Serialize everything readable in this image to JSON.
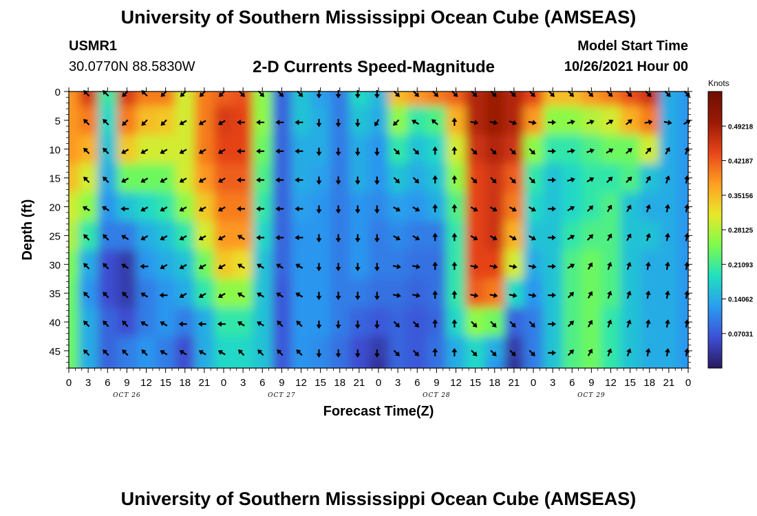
{
  "header": {
    "title": "University of Southern Mississippi Ocean Cube (AMSEAS)",
    "station_id": "USMR1",
    "coordinates": "30.0770N  88.5830W",
    "plot_title": "2-D Currents Speed-Magnitude",
    "model_start_label": "Model Start Time",
    "model_start_value": "10/26/2021 Hour 00"
  },
  "footer": {
    "title": "University of Southern Mississippi Ocean Cube (AMSEAS)"
  },
  "colors": {
    "colormap": [
      "#2a1a5e",
      "#3d4fd6",
      "#2a9cf0",
      "#20e0c0",
      "#7cfc4c",
      "#e8e82a",
      "#ff9f22",
      "#e8451a",
      "#9a1a06",
      "#6e0f04"
    ],
    "arrow": "#000000"
  },
  "chart_data": {
    "type": "heatmap",
    "title": "2-D Currents Speed-Magnitude",
    "xlabel": "Forecast Time(Z)",
    "ylabel": "Depth (ft)",
    "x_ticks": [
      "0",
      "3",
      "6",
      "9",
      "12",
      "15",
      "18",
      "21",
      "0",
      "3",
      "6",
      "9",
      "12",
      "15",
      "18",
      "21",
      "0",
      "3",
      "6",
      "9",
      "12",
      "15",
      "18",
      "21",
      "0",
      "3",
      "6",
      "9",
      "12",
      "15",
      "18",
      "21",
      "0"
    ],
    "day_labels": [
      "OCT 26",
      "OCT 27",
      "OCT 28",
      "OCT 29"
    ],
    "xlim_hours": [
      0,
      96
    ],
    "y_ticks": [
      0,
      5,
      10,
      15,
      20,
      25,
      30,
      35,
      40,
      45
    ],
    "ylim_ft": [
      0,
      48
    ],
    "colorbar": {
      "unit": "Knots",
      "min": 0,
      "max": 0.5625,
      "tick_labels": [
        "0.49218",
        "0.42187",
        "0.35156",
        "0.28125",
        "0.21093",
        "0.14062",
        "0.07031"
      ],
      "tick_values": [
        0.49218,
        0.42187,
        0.35156,
        0.28125,
        0.21093,
        0.14062,
        0.07031
      ]
    },
    "speed_knots": {
      "hours": [
        0,
        3,
        6,
        9,
        12,
        15,
        18,
        21,
        24,
        27,
        30,
        33,
        36,
        39,
        42,
        45,
        48,
        51,
        54,
        57,
        60,
        63,
        66,
        69,
        72,
        75,
        78,
        81,
        84,
        87,
        90,
        93,
        96
      ],
      "depths_ft": [
        0,
        5,
        10,
        15,
        20,
        25,
        30,
        35,
        40,
        45,
        48
      ],
      "values": [
        [
          0.38,
          0.45,
          0.2,
          0.45,
          0.4,
          0.4,
          0.3,
          0.4,
          0.42,
          0.43,
          0.26,
          0.08,
          0.16,
          0.13,
          0.1,
          0.18,
          0.15,
          0.35,
          0.38,
          0.4,
          0.42,
          0.48,
          0.5,
          0.48,
          0.44,
          0.35,
          0.35,
          0.38,
          0.4,
          0.43,
          0.46,
          0.14,
          0.12
        ],
        [
          0.38,
          0.4,
          0.18,
          0.4,
          0.35,
          0.34,
          0.3,
          0.4,
          0.45,
          0.44,
          0.26,
          0.08,
          0.16,
          0.14,
          0.1,
          0.16,
          0.14,
          0.26,
          0.2,
          0.22,
          0.36,
          0.48,
          0.5,
          0.48,
          0.38,
          0.26,
          0.26,
          0.28,
          0.3,
          0.36,
          0.4,
          0.14,
          0.12
        ],
        [
          0.38,
          0.36,
          0.16,
          0.34,
          0.3,
          0.3,
          0.3,
          0.4,
          0.44,
          0.44,
          0.24,
          0.08,
          0.14,
          0.14,
          0.1,
          0.14,
          0.12,
          0.2,
          0.16,
          0.18,
          0.3,
          0.46,
          0.48,
          0.46,
          0.26,
          0.2,
          0.2,
          0.22,
          0.24,
          0.24,
          0.3,
          0.14,
          0.12
        ],
        [
          0.35,
          0.3,
          0.14,
          0.24,
          0.24,
          0.24,
          0.3,
          0.38,
          0.42,
          0.42,
          0.22,
          0.08,
          0.14,
          0.13,
          0.1,
          0.14,
          0.12,
          0.16,
          0.14,
          0.16,
          0.26,
          0.44,
          0.46,
          0.42,
          0.2,
          0.16,
          0.18,
          0.2,
          0.2,
          0.22,
          0.16,
          0.14,
          0.12
        ],
        [
          0.3,
          0.26,
          0.12,
          0.16,
          0.18,
          0.2,
          0.26,
          0.34,
          0.4,
          0.4,
          0.2,
          0.08,
          0.13,
          0.12,
          0.1,
          0.12,
          0.11,
          0.13,
          0.12,
          0.14,
          0.22,
          0.44,
          0.46,
          0.4,
          0.18,
          0.16,
          0.18,
          0.2,
          0.22,
          0.16,
          0.14,
          0.14,
          0.12
        ],
        [
          0.28,
          0.2,
          0.1,
          0.1,
          0.14,
          0.16,
          0.2,
          0.3,
          0.38,
          0.38,
          0.18,
          0.08,
          0.12,
          0.12,
          0.1,
          0.12,
          0.1,
          0.11,
          0.1,
          0.1,
          0.2,
          0.44,
          0.46,
          0.36,
          0.16,
          0.16,
          0.2,
          0.22,
          0.22,
          0.16,
          0.16,
          0.14,
          0.12
        ],
        [
          0.25,
          0.14,
          0.06,
          0.04,
          0.12,
          0.14,
          0.16,
          0.24,
          0.34,
          0.32,
          0.16,
          0.08,
          0.12,
          0.12,
          0.1,
          0.12,
          0.1,
          0.1,
          0.09,
          0.09,
          0.2,
          0.44,
          0.44,
          0.3,
          0.14,
          0.16,
          0.22,
          0.24,
          0.22,
          0.16,
          0.14,
          0.14,
          0.12
        ],
        [
          0.24,
          0.12,
          0.06,
          0.04,
          0.1,
          0.12,
          0.14,
          0.2,
          0.26,
          0.26,
          0.16,
          0.07,
          0.12,
          0.12,
          0.1,
          0.1,
          0.09,
          0.09,
          0.08,
          0.09,
          0.2,
          0.42,
          0.4,
          0.18,
          0.12,
          0.16,
          0.22,
          0.24,
          0.22,
          0.16,
          0.14,
          0.14,
          0.12
        ],
        [
          0.24,
          0.14,
          0.08,
          0.06,
          0.1,
          0.12,
          0.1,
          0.14,
          0.2,
          0.2,
          0.16,
          0.07,
          0.12,
          0.12,
          0.1,
          0.08,
          0.07,
          0.08,
          0.07,
          0.08,
          0.18,
          0.26,
          0.24,
          0.08,
          0.1,
          0.16,
          0.22,
          0.24,
          0.2,
          0.16,
          0.14,
          0.14,
          0.12
        ],
        [
          0.24,
          0.14,
          0.08,
          0.1,
          0.12,
          0.1,
          0.06,
          0.14,
          0.18,
          0.18,
          0.16,
          0.07,
          0.12,
          0.11,
          0.09,
          0.06,
          0.04,
          0.08,
          0.07,
          0.09,
          0.14,
          0.18,
          0.14,
          0.04,
          0.1,
          0.16,
          0.22,
          0.24,
          0.2,
          0.16,
          0.14,
          0.14,
          0.12
        ],
        [
          0.24,
          0.14,
          0.08,
          0.1,
          0.12,
          0.1,
          0.06,
          0.14,
          0.18,
          0.18,
          0.16,
          0.07,
          0.12,
          0.11,
          0.09,
          0.06,
          0.03,
          0.08,
          0.07,
          0.09,
          0.14,
          0.18,
          0.12,
          0.03,
          0.1,
          0.16,
          0.22,
          0.24,
          0.2,
          0.16,
          0.14,
          0.14,
          0.12
        ]
      ]
    },
    "vector_directions_deg": {
      "note": "direction the current flows toward, degrees clockwise from north (up); arrow rows at depths 0,5,...,45 ft, columns every 3 h",
      "depths_ft": [
        0,
        5,
        10,
        15,
        20,
        25,
        30,
        35,
        40,
        45
      ],
      "rows": [
        [
          315,
          315,
          225,
          315,
          225,
          225,
          225,
          225,
          135,
          135,
          135,
          135,
          180,
          180,
          180,
          180,
          135,
          135,
          135,
          135,
          135,
          135,
          135,
          135,
          135,
          135,
          135,
          135,
          135,
          135,
          135,
          135,
          135
        ],
        [
          315,
          315,
          225,
          225,
          225,
          240,
          240,
          240,
          270,
          270,
          270,
          270,
          180,
          180,
          180,
          210,
          225,
          300,
          310,
          0,
          100,
          100,
          110,
          100,
          90,
          75,
          70,
          60,
          50,
          80,
          100,
          60,
          30
        ],
        [
          315,
          315,
          240,
          240,
          240,
          240,
          240,
          240,
          270,
          270,
          270,
          270,
          180,
          180,
          180,
          180,
          135,
          135,
          0,
          0,
          135,
          135,
          135,
          135,
          90,
          80,
          70,
          60,
          50,
          40,
          30,
          20,
          20
        ],
        [
          315,
          315,
          240,
          240,
          240,
          240,
          240,
          240,
          270,
          270,
          270,
          270,
          180,
          180,
          180,
          180,
          135,
          135,
          0,
          0,
          135,
          135,
          135,
          135,
          90,
          75,
          60,
          45,
          45,
          30,
          20,
          10,
          10
        ],
        [
          300,
          300,
          270,
          240,
          240,
          240,
          240,
          240,
          270,
          270,
          270,
          270,
          180,
          180,
          180,
          180,
          120,
          120,
          0,
          0,
          120,
          120,
          120,
          120,
          90,
          60,
          45,
          30,
          30,
          20,
          10,
          10,
          10
        ],
        [
          315,
          315,
          300,
          240,
          240,
          240,
          240,
          240,
          300,
          270,
          270,
          270,
          180,
          180,
          180,
          180,
          120,
          120,
          0,
          0,
          120,
          120,
          120,
          120,
          90,
          60,
          45,
          30,
          30,
          20,
          10,
          10,
          10
        ],
        [
          315,
          315,
          300,
          270,
          240,
          240,
          240,
          240,
          300,
          300,
          300,
          300,
          180,
          180,
          180,
          180,
          100,
          100,
          0,
          0,
          100,
          100,
          100,
          100,
          90,
          60,
          30,
          20,
          20,
          10,
          10,
          10,
          10
        ],
        [
          315,
          315,
          315,
          300,
          270,
          240,
          240,
          240,
          300,
          300,
          300,
          300,
          180,
          180,
          180,
          180,
          100,
          100,
          0,
          0,
          100,
          100,
          100,
          100,
          90,
          45,
          30,
          20,
          20,
          10,
          10,
          10,
          10
        ],
        [
          315,
          315,
          315,
          300,
          300,
          270,
          270,
          270,
          300,
          300,
          315,
          315,
          180,
          180,
          180,
          180,
          135,
          135,
          0,
          0,
          135,
          135,
          135,
          135,
          90,
          45,
          30,
          20,
          20,
          10,
          10,
          10,
          10
        ],
        [
          315,
          315,
          315,
          315,
          300,
          300,
          300,
          300,
          315,
          315,
          315,
          315,
          180,
          180,
          180,
          180,
          135,
          135,
          0,
          0,
          135,
          135,
          135,
          135,
          90,
          45,
          30,
          20,
          20,
          10,
          10,
          10,
          10
        ]
      ]
    }
  }
}
